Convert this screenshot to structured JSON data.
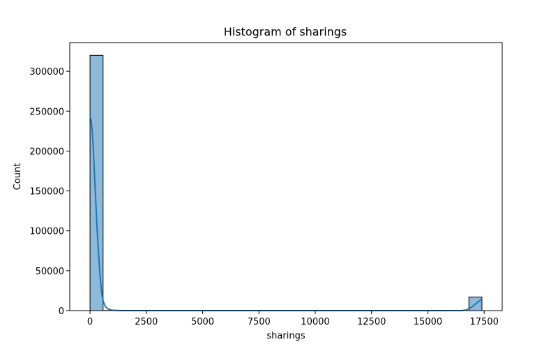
{
  "chart_data": {
    "type": "bar",
    "title": "Histogram of sharings",
    "xlabel": "sharings",
    "ylabel": "Count",
    "xlim": [
      -900,
      18300
    ],
    "ylim": [
      0,
      336000
    ],
    "x_ticks": [
      0,
      2500,
      5000,
      7500,
      10000,
      12500,
      15000,
      17500
    ],
    "x_tick_labels": [
      "0",
      "2500",
      "5000",
      "7500",
      "10000",
      "12500",
      "15000",
      "17500"
    ],
    "y_ticks": [
      0,
      50000,
      100000,
      150000,
      200000,
      250000,
      300000
    ],
    "y_tick_labels": [
      "0",
      "50000",
      "100000",
      "150000",
      "200000",
      "250000",
      "300000"
    ],
    "bin_width": 580,
    "bins": [
      {
        "start": 0,
        "count": 320000
      },
      {
        "start": 580,
        "count": 200
      },
      {
        "start": 16820,
        "count": 17000
      }
    ],
    "kde": {
      "x": [
        0,
        50,
        100,
        150,
        200,
        250,
        300,
        350,
        400,
        450,
        500,
        550,
        600,
        650,
        700,
        800,
        900,
        1000,
        1200,
        1500,
        2500,
        5000,
        10000,
        15000,
        16500,
        16700,
        16900,
        17100,
        17300,
        17400
      ],
      "y": [
        245000,
        238000,
        225000,
        200000,
        170000,
        140000,
        110000,
        85000,
        62000,
        42000,
        27000,
        17000,
        11000,
        7000,
        4500,
        2200,
        1100,
        600,
        200,
        50,
        0,
        0,
        0,
        0,
        100,
        800,
        3500,
        8000,
        12500,
        14500
      ]
    },
    "grid": false,
    "colors": {
      "bar_fill": "#8db9da",
      "bar_edge": "#000000",
      "kde_line": "#1f77b4"
    }
  }
}
